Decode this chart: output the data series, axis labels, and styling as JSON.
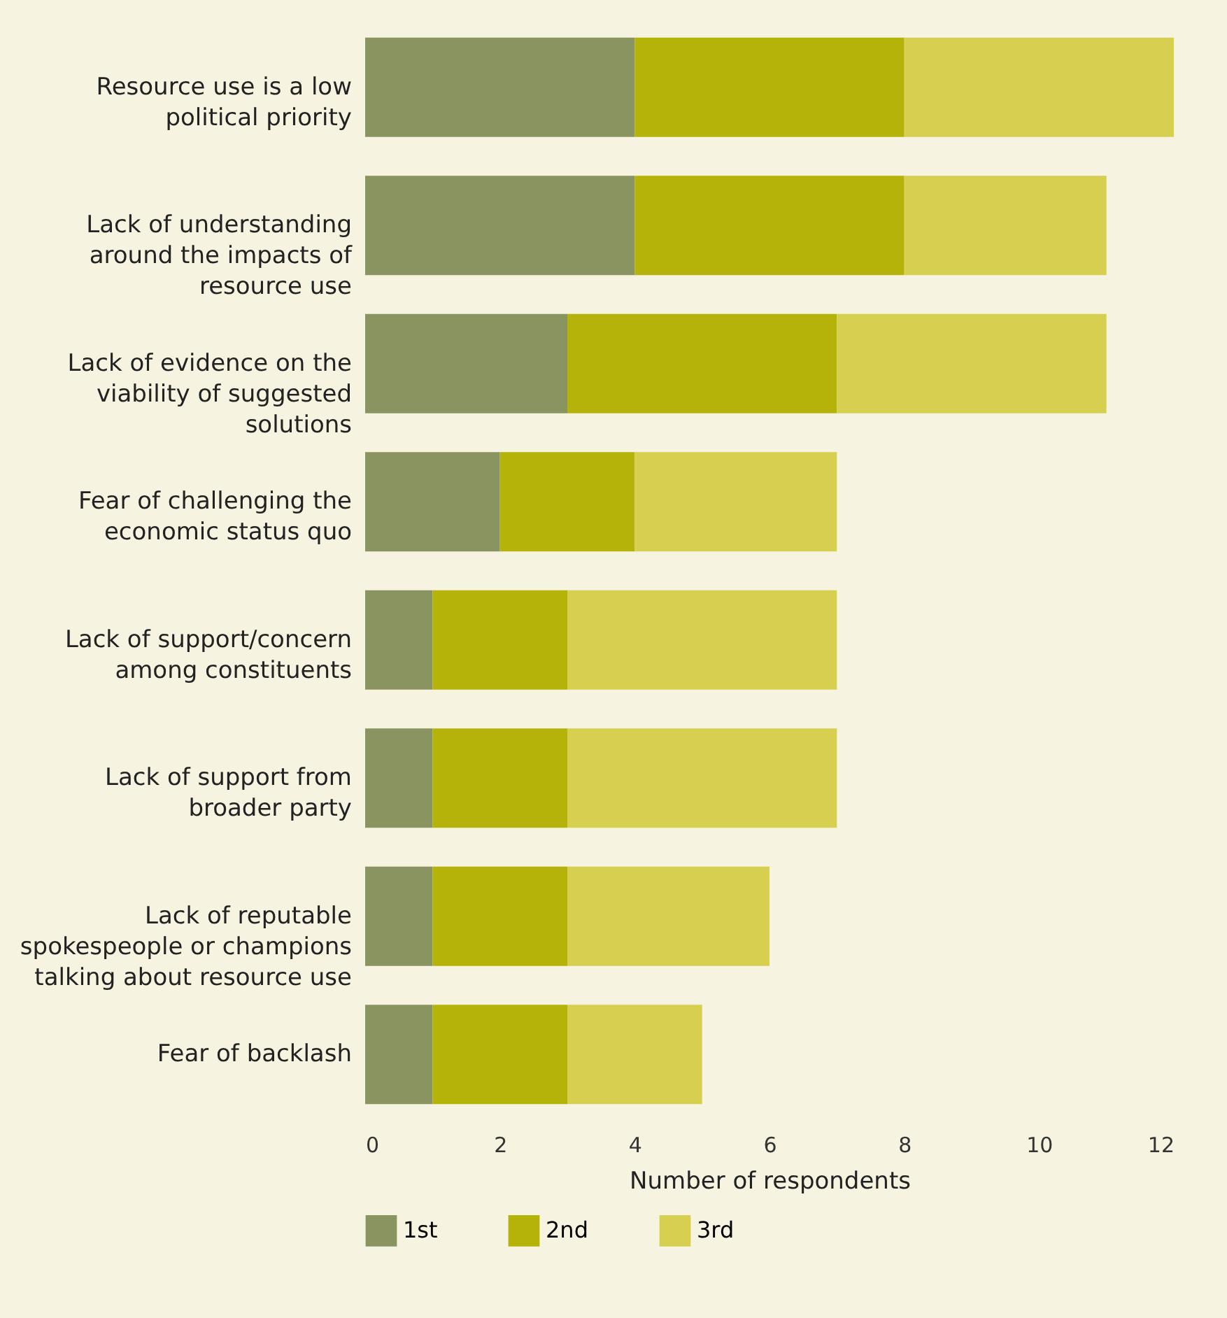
{
  "chart_data": {
    "type": "bar",
    "orientation": "horizontal",
    "stacked": true,
    "xlabel": "Number of respondents",
    "categories": [
      "Resource use is a low political priority",
      "Lack of understanding around the impacts of resource use",
      "Lack of evidence on the viability of suggested solutions",
      "Fear of challenging the economic status quo",
      "Lack of support/concern among constituents",
      "Lack of support from broader party",
      "Lack of reputable spokespeople or champions talking about resource use",
      "Fear of backlash"
    ],
    "series": [
      {
        "name": "1st",
        "color": "#8a9460",
        "values": [
          4,
          4,
          3,
          2,
          1,
          1,
          1,
          1
        ]
      },
      {
        "name": "2nd",
        "color": "#b5b20a",
        "values": [
          4,
          4,
          4,
          2,
          2,
          2,
          2,
          2
        ]
      },
      {
        "name": "3rd",
        "color": "#d6cf50",
        "values": [
          4,
          3,
          4,
          3,
          4,
          4,
          3,
          2
        ]
      }
    ],
    "xlim": [
      0,
      12
    ],
    "xticks": [
      0,
      2,
      4,
      6,
      8,
      10,
      12
    ],
    "grid": false,
    "legend": "bottom"
  }
}
